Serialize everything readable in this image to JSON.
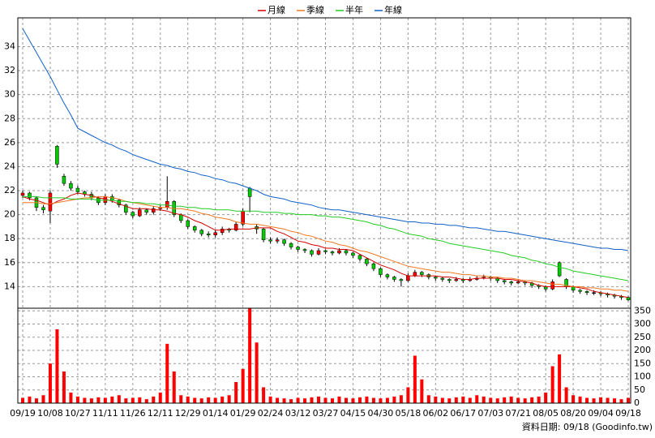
{
  "chart_data": {
    "type": "candlestick",
    "categories": [
      "09/19",
      null,
      null,
      null,
      "10/08",
      null,
      null,
      null,
      "10/27",
      null,
      null,
      null,
      "11/11",
      null,
      null,
      null,
      "11/26",
      null,
      null,
      null,
      "12/11",
      null,
      null,
      null,
      "12/29",
      null,
      null,
      null,
      "01/14",
      null,
      null,
      null,
      "01/29",
      null,
      null,
      null,
      "02/24",
      null,
      null,
      null,
      "03/12",
      null,
      null,
      null,
      "03/27",
      null,
      null,
      null,
      "04/15",
      null,
      null,
      null,
      "04/30",
      null,
      null,
      null,
      "05/18",
      null,
      null,
      null,
      "06/02",
      null,
      null,
      null,
      "06/17",
      null,
      null,
      null,
      "07/03",
      null,
      null,
      null,
      "07/21",
      null,
      null,
      null,
      "08/05",
      null,
      null,
      null,
      "08/20",
      null,
      null,
      null,
      "09/04",
      null,
      null,
      null,
      "09/18"
    ],
    "open": [
      21.6,
      21.8,
      21.4,
      20.6,
      20.3,
      25.7,
      23.2,
      22.6,
      22.2,
      21.9,
      21.7,
      21.4,
      21.0,
      21.5,
      21.2,
      20.8,
      20.2,
      19.9,
      20.4,
      20.2,
      20.5,
      20.6,
      21.1,
      20.0,
      19.5,
      19.0,
      18.7,
      18.4,
      18.3,
      18.5,
      18.8,
      18.7,
      19.2,
      22.2,
      19.0,
      18.8,
      17.9,
      17.8,
      17.9,
      17.6,
      17.3,
      17.1,
      17.0,
      16.7,
      17.0,
      16.9,
      16.8,
      17.0,
      16.8,
      16.6,
      16.3,
      15.9,
      15.5,
      15.0,
      14.8,
      14.6,
      14.5,
      14.9,
      15.2,
      15.0,
      14.8,
      14.7,
      14.6,
      14.5,
      14.6,
      14.5,
      14.6,
      14.7,
      14.8,
      14.7,
      14.5,
      14.4,
      14.3,
      14.4,
      14.3,
      14.1,
      14.0,
      13.8,
      16.0,
      14.6,
      14.0,
      13.7,
      13.6,
      13.5,
      13.5,
      13.4,
      13.3,
      13.2,
      13.1
    ],
    "high": [
      22.0,
      21.9,
      21.5,
      20.8,
      22.0,
      25.8,
      23.4,
      22.8,
      22.4,
      22.0,
      21.9,
      21.5,
      21.7,
      21.7,
      21.3,
      20.9,
      20.3,
      20.6,
      20.5,
      20.7,
      20.8,
      23.2,
      21.2,
      20.1,
      19.6,
      19.1,
      18.8,
      18.6,
      18.7,
      19.0,
      18.9,
      19.4,
      20.5,
      22.3,
      19.2,
      18.9,
      18.1,
      18.1,
      18.0,
      17.7,
      17.4,
      17.2,
      17.1,
      17.2,
      17.1,
      17.0,
      17.2,
      17.1,
      16.9,
      16.7,
      16.4,
      16.0,
      15.6,
      15.1,
      14.9,
      14.7,
      15.1,
      15.4,
      15.3,
      15.1,
      14.9,
      14.8,
      14.7,
      14.8,
      14.7,
      14.8,
      14.9,
      15.0,
      14.9,
      14.8,
      14.6,
      14.5,
      14.6,
      14.5,
      14.4,
      14.2,
      14.1,
      14.6,
      16.1,
      14.7,
      14.1,
      13.8,
      13.7,
      13.7,
      13.6,
      13.5,
      13.4,
      13.3,
      13.2
    ],
    "low": [
      21.4,
      21.2,
      20.3,
      20.1,
      19.3,
      23.9,
      22.4,
      22.0,
      21.7,
      21.5,
      21.2,
      20.8,
      20.8,
      21.0,
      20.6,
      20.0,
      19.7,
      19.8,
      20.0,
      20.0,
      20.3,
      20.4,
      19.8,
      19.3,
      18.8,
      18.5,
      18.2,
      18.1,
      18.1,
      18.3,
      18.5,
      18.6,
      19.0,
      20.2,
      18.4,
      17.7,
      17.6,
      17.6,
      17.4,
      17.1,
      16.9,
      16.8,
      16.5,
      16.6,
      16.7,
      16.6,
      16.7,
      16.6,
      16.4,
      16.1,
      15.7,
      15.3,
      14.8,
      14.6,
      14.4,
      14.0,
      14.4,
      14.8,
      14.8,
      14.6,
      14.5,
      14.4,
      14.3,
      14.4,
      14.3,
      14.4,
      14.5,
      14.6,
      14.5,
      14.3,
      14.2,
      14.1,
      14.2,
      14.1,
      13.9,
      13.8,
      13.6,
      13.7,
      14.8,
      13.8,
      13.5,
      13.4,
      13.3,
      13.3,
      13.2,
      13.1,
      13.0,
      12.9,
      12.8
    ],
    "close": [
      21.8,
      21.4,
      20.6,
      20.4,
      21.8,
      24.2,
      22.6,
      22.2,
      21.9,
      21.7,
      21.4,
      21.0,
      21.5,
      21.2,
      20.8,
      20.2,
      19.9,
      20.4,
      20.2,
      20.5,
      20.6,
      21.1,
      20.0,
      19.5,
      19.0,
      18.7,
      18.4,
      18.3,
      18.5,
      18.8,
      18.7,
      19.2,
      20.3,
      21.5,
      18.8,
      17.9,
      17.8,
      17.9,
      17.6,
      17.3,
      17.1,
      17.0,
      16.7,
      17.0,
      16.9,
      16.8,
      17.0,
      16.8,
      16.6,
      16.3,
      15.9,
      15.5,
      15.0,
      14.8,
      14.6,
      14.5,
      14.9,
      15.2,
      15.0,
      14.8,
      14.7,
      14.6,
      14.5,
      14.6,
      14.5,
      14.6,
      14.7,
      14.8,
      14.7,
      14.5,
      14.4,
      14.3,
      14.4,
      14.3,
      14.1,
      14.0,
      13.8,
      14.4,
      14.9,
      14.0,
      13.7,
      13.6,
      13.5,
      13.5,
      13.4,
      13.3,
      13.2,
      13.1,
      12.9
    ],
    "volume": [
      20,
      25,
      18,
      30,
      150,
      280,
      120,
      40,
      25,
      20,
      18,
      22,
      20,
      25,
      30,
      18,
      20,
      22,
      15,
      25,
      40,
      225,
      120,
      30,
      25,
      20,
      18,
      22,
      20,
      25,
      30,
      80,
      130,
      360,
      230,
      60,
      25,
      20,
      18,
      15,
      20,
      18,
      22,
      25,
      20,
      18,
      25,
      20,
      18,
      22,
      25,
      20,
      18,
      20,
      25,
      30,
      60,
      180,
      90,
      30,
      25,
      20,
      18,
      22,
      25,
      20,
      30,
      25,
      20,
      18,
      22,
      25,
      20,
      18,
      22,
      25,
      40,
      140,
      185,
      60,
      30,
      25,
      20,
      18,
      22,
      20,
      18,
      15,
      20
    ],
    "series": [
      {
        "name": "月線",
        "color": "#d40000",
        "values": [
          21.5,
          21.3,
          21.2,
          21.0,
          20.8,
          21.1,
          21.3,
          21.6,
          21.8,
          21.7,
          21.6,
          21.4,
          21.3,
          21.1,
          20.9,
          20.7,
          20.5,
          20.5,
          20.5,
          20.4,
          20.4,
          20.3,
          20.1,
          20.0,
          19.8,
          19.5,
          19.3,
          19.0,
          18.7,
          18.7,
          18.8,
          18.8,
          18.8,
          18.8,
          18.9,
          18.9,
          18.9,
          18.6,
          18.4,
          18.1,
          17.8,
          17.7,
          17.5,
          17.4,
          17.2,
          17.2,
          17.1,
          17.1,
          17.0,
          16.7,
          16.4,
          16.1,
          15.8,
          15.6,
          15.4,
          15.1,
          14.9,
          14.9,
          14.9,
          14.9,
          14.9,
          14.8,
          14.8,
          14.7,
          14.6,
          14.6,
          14.7,
          14.7,
          14.7,
          14.7,
          14.6,
          14.6,
          14.5,
          14.4,
          14.3,
          14.1,
          14.0,
          14.0,
          14.0,
          14.0,
          14.0,
          13.9,
          13.8,
          13.6,
          13.5,
          13.4,
          13.3,
          13.2,
          13.1
        ]
      },
      {
        "name": "季線",
        "color": "#f07820",
        "values": [
          21.0,
          21.0,
          21.0,
          20.9,
          20.9,
          21.0,
          21.1,
          21.2,
          21.3,
          21.4,
          21.4,
          21.5,
          21.5,
          21.4,
          21.3,
          21.1,
          21.0,
          20.9,
          20.8,
          20.7,
          20.6,
          20.6,
          20.5,
          20.5,
          20.4,
          20.3,
          20.1,
          20.0,
          19.8,
          19.7,
          19.6,
          19.4,
          19.3,
          19.2,
          19.2,
          19.1,
          19.0,
          18.9,
          18.8,
          18.6,
          18.5,
          18.3,
          18.2,
          18.0,
          17.8,
          17.7,
          17.5,
          17.4,
          17.2,
          17.0,
          16.9,
          16.7,
          16.5,
          16.3,
          16.1,
          15.9,
          15.7,
          15.6,
          15.5,
          15.4,
          15.3,
          15.2,
          15.2,
          15.1,
          15.0,
          15.0,
          14.9,
          14.9,
          14.8,
          14.8,
          14.7,
          14.7,
          14.6,
          14.5,
          14.5,
          14.4,
          14.3,
          14.2,
          14.2,
          14.1,
          14.0,
          14.0,
          13.9,
          13.9,
          13.8,
          13.8,
          13.7,
          13.7,
          13.6
        ]
      },
      {
        "name": "半年",
        "color": "#22cc22",
        "values": [
          21.5,
          21.5,
          21.5,
          21.4,
          21.4,
          21.4,
          21.4,
          21.3,
          21.3,
          21.3,
          21.3,
          21.2,
          21.2,
          21.2,
          21.1,
          21.1,
          21.0,
          21.0,
          20.9,
          20.9,
          20.8,
          20.8,
          20.7,
          20.7,
          20.6,
          20.6,
          20.5,
          20.5,
          20.4,
          20.4,
          20.4,
          20.3,
          20.3,
          20.3,
          20.3,
          20.2,
          20.2,
          20.2,
          20.1,
          20.1,
          20.0,
          20.0,
          20.0,
          19.9,
          19.9,
          19.8,
          19.8,
          19.7,
          19.6,
          19.5,
          19.4,
          19.2,
          19.1,
          18.9,
          18.8,
          18.6,
          18.4,
          18.3,
          18.2,
          18.0,
          17.9,
          17.8,
          17.6,
          17.5,
          17.4,
          17.3,
          17.2,
          17.1,
          17.0,
          16.9,
          16.8,
          16.6,
          16.5,
          16.4,
          16.2,
          16.1,
          15.9,
          15.8,
          15.6,
          15.5,
          15.3,
          15.2,
          15.1,
          15.0,
          14.9,
          14.8,
          14.7,
          14.6,
          14.5
        ]
      },
      {
        "name": "年線",
        "color": "#1060c8",
        "values": [
          35.5,
          34.5,
          33.5,
          32.5,
          31.5,
          30.4,
          29.3,
          28.3,
          27.2,
          26.9,
          26.6,
          26.3,
          26.0,
          25.8,
          25.5,
          25.3,
          25.0,
          24.8,
          24.6,
          24.4,
          24.2,
          24.1,
          23.9,
          23.8,
          23.6,
          23.5,
          23.3,
          23.2,
          23.0,
          22.9,
          22.7,
          22.6,
          22.4,
          22.2,
          22.0,
          21.7,
          21.5,
          21.4,
          21.3,
          21.1,
          21.0,
          20.9,
          20.8,
          20.6,
          20.5,
          20.4,
          20.4,
          20.3,
          20.2,
          20.1,
          20.0,
          19.9,
          19.8,
          19.7,
          19.6,
          19.5,
          19.4,
          19.4,
          19.3,
          19.3,
          19.2,
          19.2,
          19.1,
          19.1,
          19.0,
          18.9,
          18.9,
          18.8,
          18.7,
          18.6,
          18.6,
          18.5,
          18.4,
          18.3,
          18.2,
          18.1,
          18.0,
          17.9,
          17.8,
          17.7,
          17.6,
          17.5,
          17.4,
          17.3,
          17.2,
          17.2,
          17.1,
          17.1,
          17.0
        ]
      }
    ],
    "ylim": [
      12.2,
      36.4
    ],
    "yticks": [
      14,
      16,
      18,
      20,
      22,
      24,
      26,
      28,
      30,
      32,
      34
    ],
    "y2lim": [
      0,
      360
    ],
    "y2ticks": [
      0,
      50,
      100,
      150,
      200,
      250,
      300,
      350
    ],
    "grid": true,
    "up_color": "#ff0000",
    "down_color": "#00cc00",
    "volume_color": "#ff0000",
    "source": "資料日期: 09/18  (Goodinfo.tw)"
  }
}
